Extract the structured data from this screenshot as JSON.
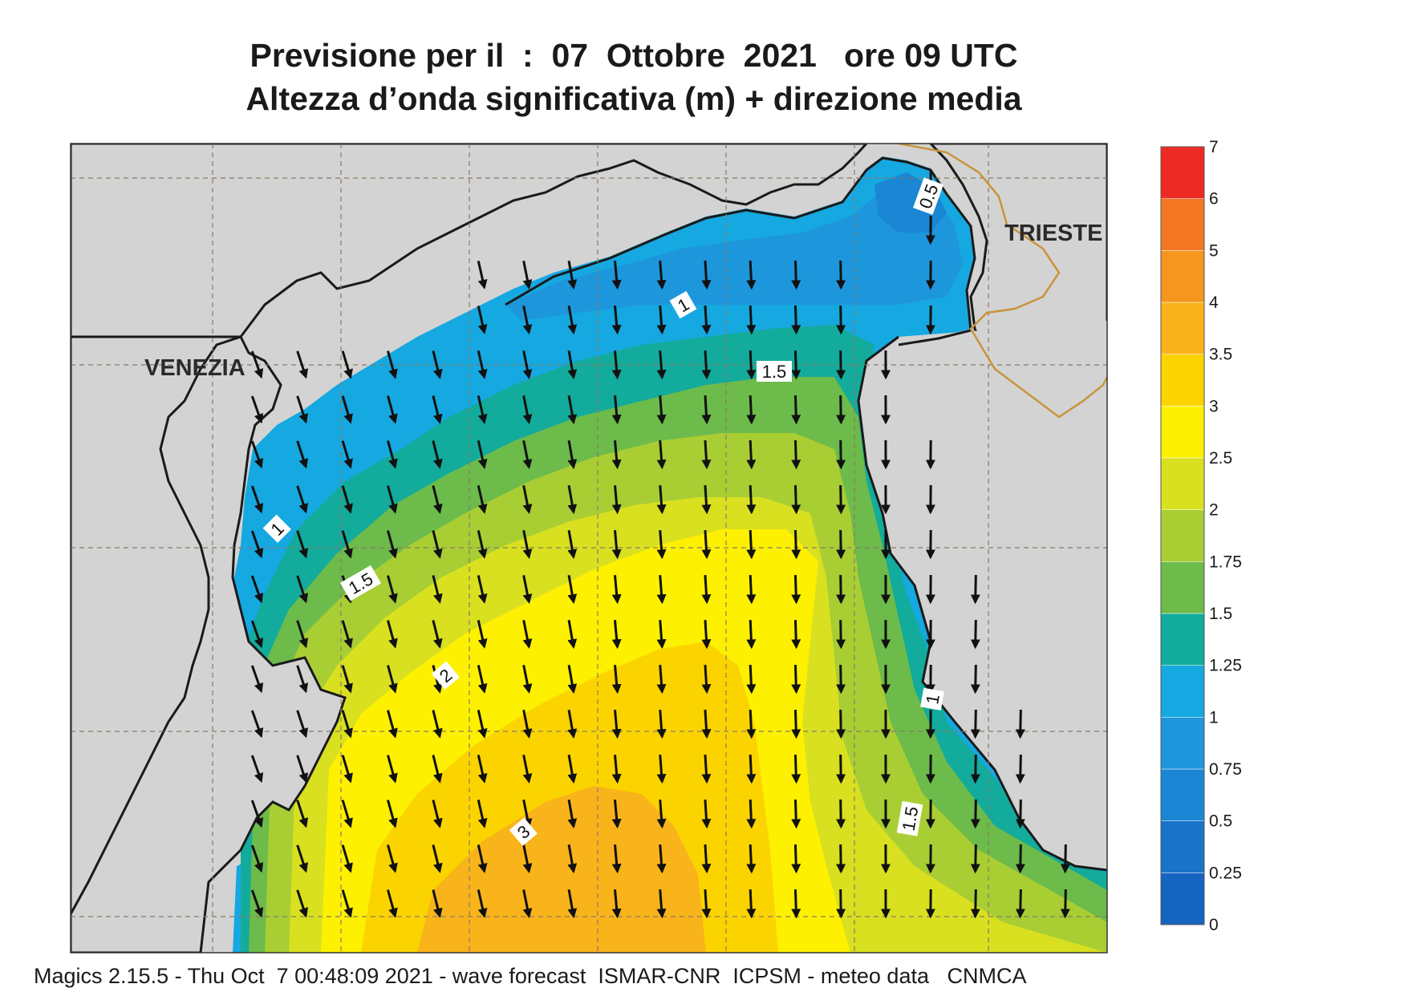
{
  "title_line1": "Previsione per il  :  07  Ottobre  2021   ore 09 UTC",
  "title_line2": "Altezza d’onda significativa (m) + direzione media",
  "footer": "Magics 2.15.5 - Thu Oct  7 00:48:09 2021 - wave forecast  ISMAR-CNR  ICPSM - meteo data   CNMCA",
  "places": [
    {
      "name": "VENEZIA"
    },
    {
      "name": "TRIESTE"
    }
  ],
  "colorbar": {
    "levels": [
      {
        "value": "0",
        "color": "#1565c0"
      },
      {
        "value": "0.25",
        "color": "#1873c9"
      },
      {
        "value": "0.5",
        "color": "#1a86d4"
      },
      {
        "value": "0.75",
        "color": "#1e96dc"
      },
      {
        "value": "1",
        "color": "#16a8e0"
      },
      {
        "value": "1.25",
        "color": "#13ab9c"
      },
      {
        "value": "1.5",
        "color": "#6dbb4a"
      },
      {
        "value": "1.75",
        "color": "#a8ce34"
      },
      {
        "value": "2",
        "color": "#d8e020"
      },
      {
        "value": "2.5",
        "color": "#fdf000"
      },
      {
        "value": "3",
        "color": "#fbd400"
      },
      {
        "value": "3.5",
        "color": "#f8b41a"
      },
      {
        "value": "4",
        "color": "#f5961e"
      },
      {
        "value": "5",
        "color": "#f47721"
      },
      {
        "value": "6",
        "color": "#ee2a24"
      },
      {
        "value": "7",
        "color": "#ec1460"
      }
    ]
  },
  "contour_labels": [
    "0.5",
    "1",
    "1.5",
    "1",
    "1.5",
    "2",
    "3",
    "1",
    "1.5"
  ],
  "colors": {
    "land": "#d3d3d3",
    "coast": "#1a1a1a",
    "grid": "#8a7a66",
    "border": "#c8943a"
  }
}
